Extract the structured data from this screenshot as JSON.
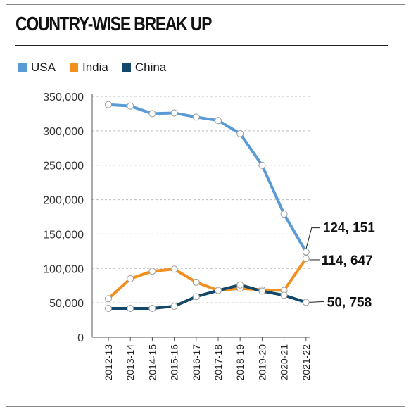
{
  "title": "COUNTRY-WISE BREAK UP",
  "legend": [
    {
      "label": "USA",
      "color": "#5b9bd5"
    },
    {
      "label": "India",
      "color": "#f0901e"
    },
    {
      "label": "China",
      "color": "#13486b"
    }
  ],
  "chart_data": {
    "type": "line",
    "title": "COUNTRY-WISE BREAK UP",
    "xlabel": "",
    "ylabel": "",
    "categories": [
      "2012-13",
      "2013-14",
      "2014-15",
      "2015-16",
      "2016-17",
      "2017-18",
      "2018-19",
      "2019-20",
      "2020-21",
      "2021-22"
    ],
    "ylim": [
      0,
      350000
    ],
    "yticks": [
      0,
      50000,
      100000,
      150000,
      200000,
      250000,
      300000,
      350000
    ],
    "ytick_labels": [
      "0",
      "50,000",
      "100,000",
      "150,000",
      "200,000",
      "250,000",
      "300,000",
      "350,000"
    ],
    "grid": "horizontal dashed",
    "legend_position": "top-left",
    "series": [
      {
        "name": "USA",
        "color": "#5b9bd5",
        "values": [
          338000,
          336000,
          325000,
          326000,
          320000,
          315000,
          296000,
          250000,
          179000,
          124151
        ]
      },
      {
        "name": "India",
        "color": "#f0901e",
        "values": [
          56000,
          85000,
          96000,
          99000,
          80000,
          68000,
          71000,
          69000,
          68000,
          114647
        ]
      },
      {
        "name": "China",
        "color": "#13486b",
        "values": [
          42000,
          42000,
          42000,
          45000,
          59000,
          68000,
          76000,
          67000,
          61000,
          50758
        ]
      }
    ],
    "annotations": [
      {
        "series": "USA",
        "text": "124, 151"
      },
      {
        "series": "India",
        "text": "114, 647"
      },
      {
        "series": "China",
        "text": "50, 758"
      }
    ]
  }
}
